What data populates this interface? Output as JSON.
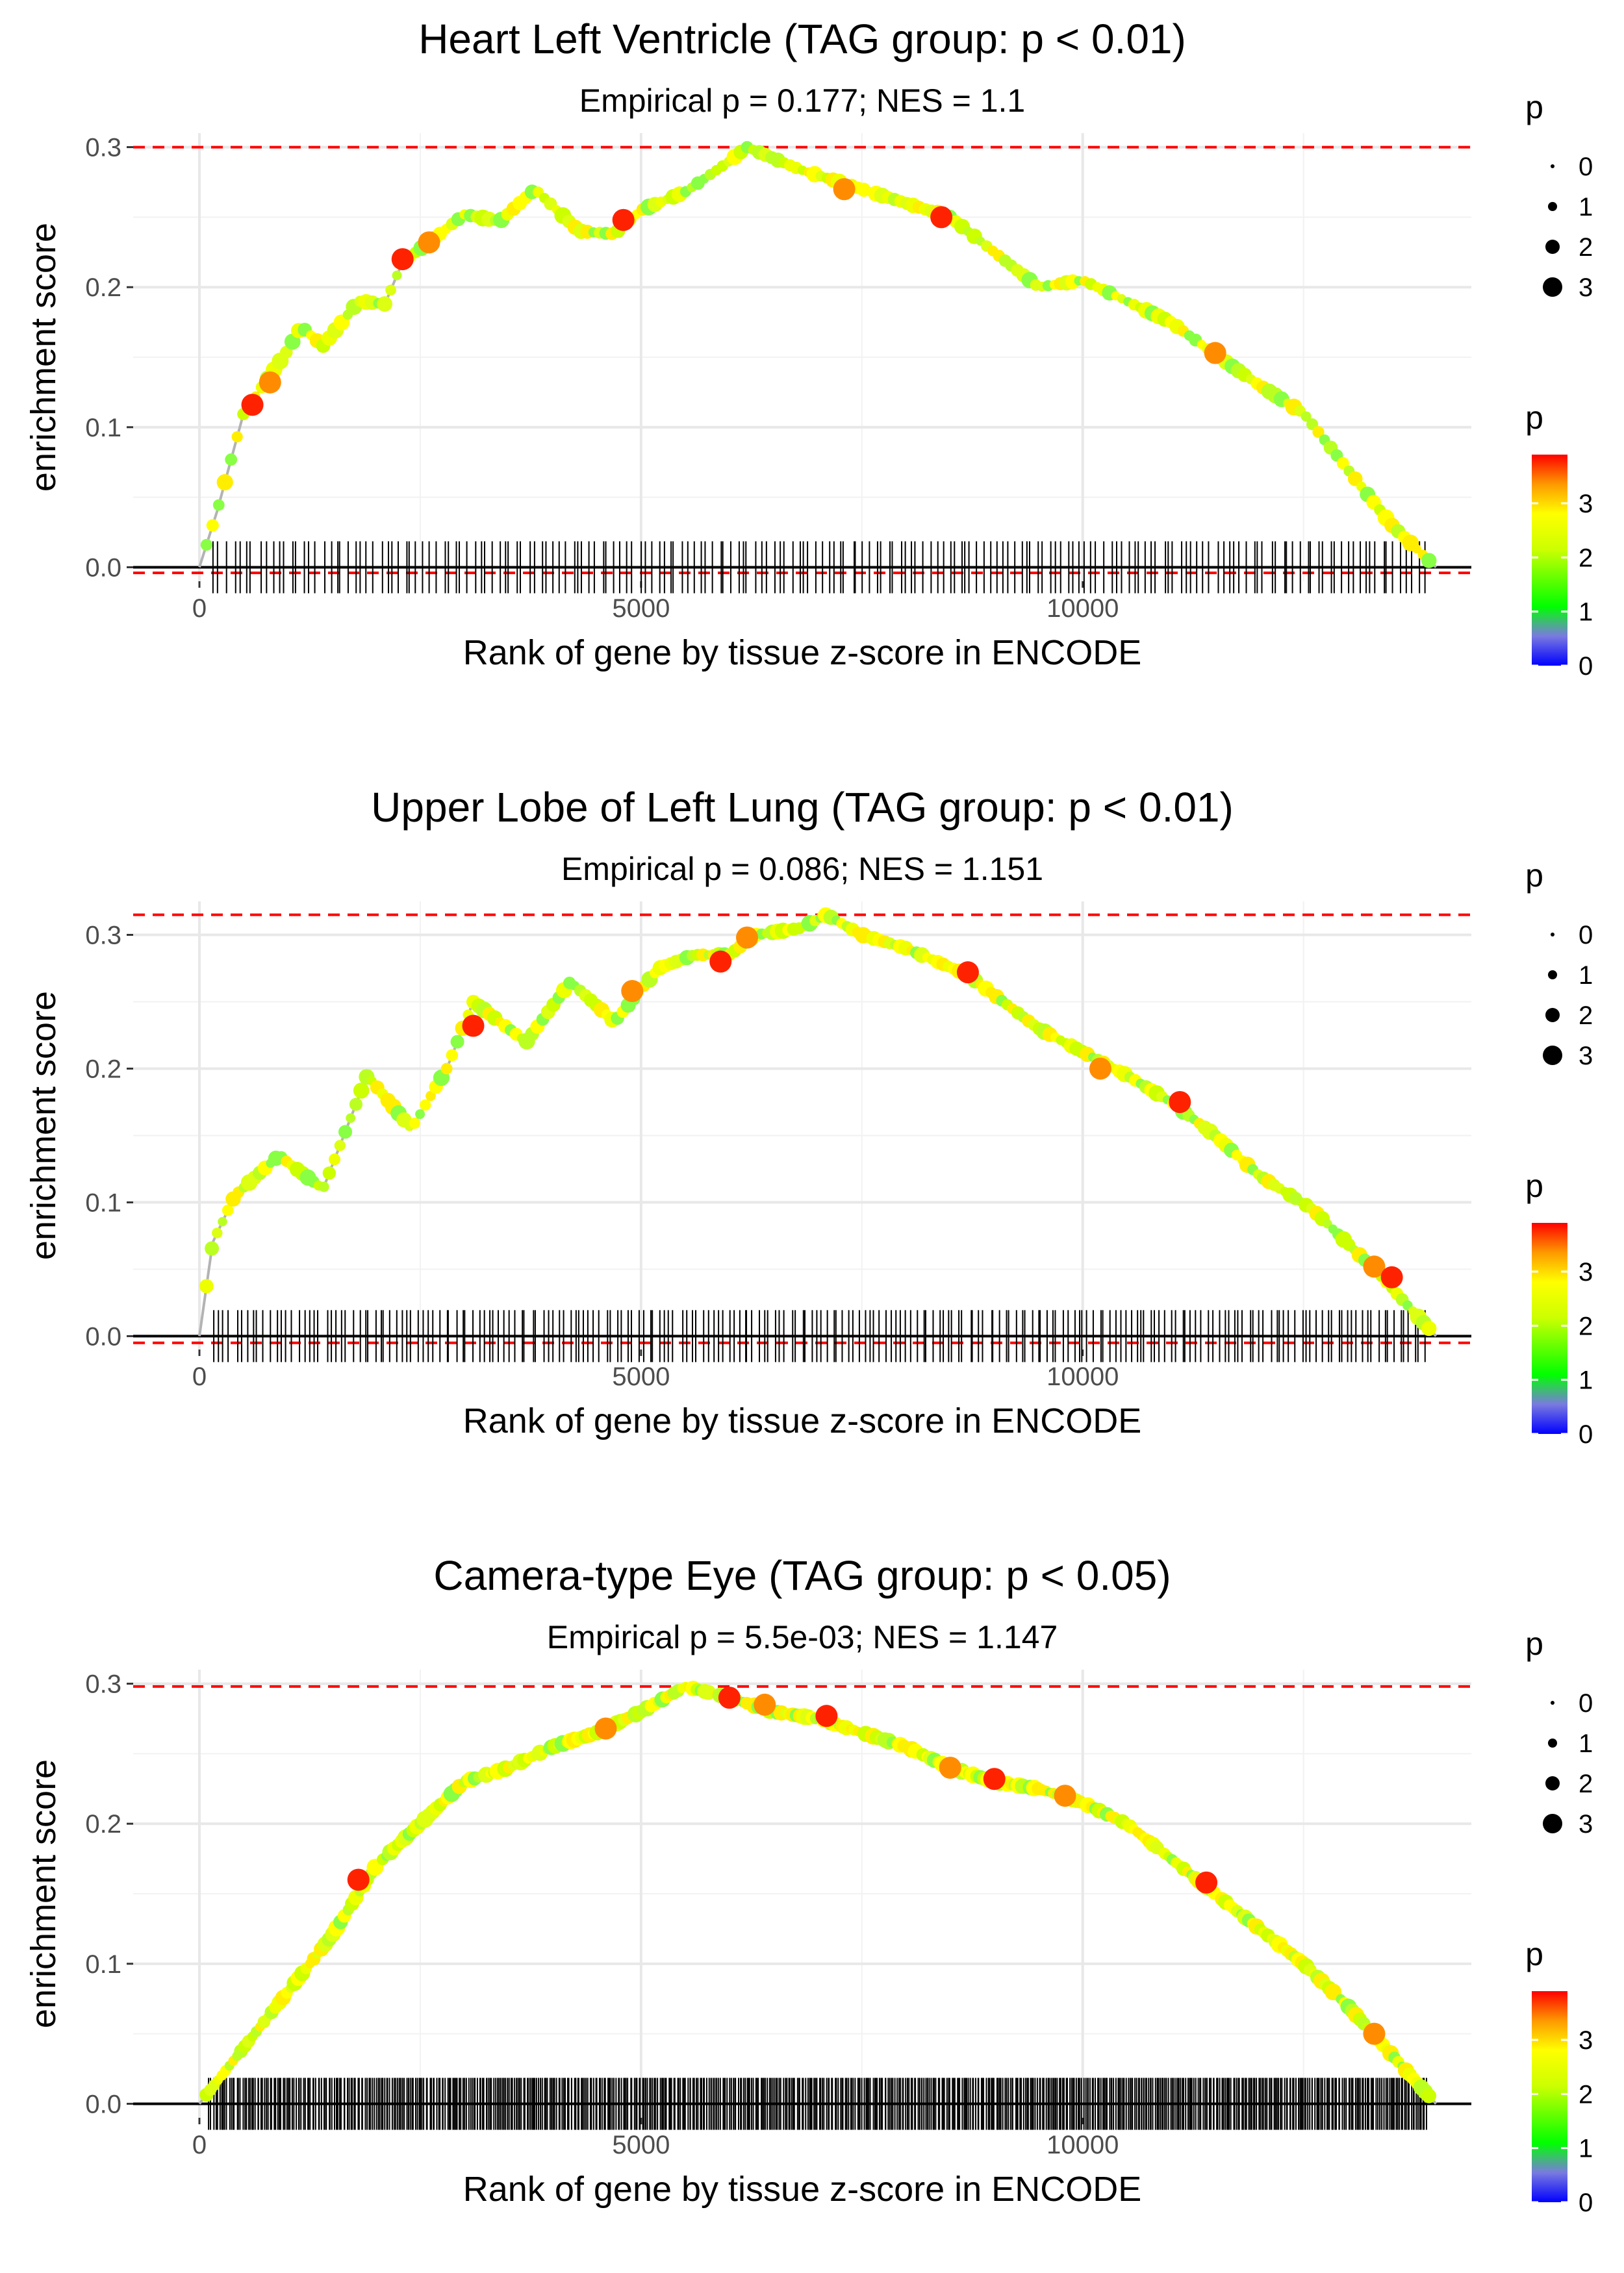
{
  "chart_data": [
    {
      "type": "line",
      "title": "Heart Left Ventricle (TAG group: p < 0.01)",
      "subtitle": "Empirical p = 0.177; NES = 1.1",
      "xlabel": "Rank of gene by tissue z-score in ENCODE",
      "ylabel": "enrichment score",
      "xlim": [
        -750,
        14400
      ],
      "ylim": [
        -0.01,
        0.31
      ],
      "x_ticks": [
        0,
        5000,
        10000
      ],
      "x_tick_labels": [
        "0",
        "5000",
        "10000"
      ],
      "y_ticks": [
        0,
        0.1,
        0.2,
        0.3
      ],
      "y_tick_labels": [
        "0.0",
        "0.1",
        "0.2",
        "0.3"
      ],
      "max_es": 0.3,
      "min_es": -0.004,
      "n_hits": 200,
      "n_genes": 14000,
      "curve": [
        [
          0,
          0
        ],
        [
          200,
          0.04
        ],
        [
          500,
          0.11
        ],
        [
          1000,
          0.155
        ],
        [
          1150,
          0.172
        ],
        [
          1400,
          0.158
        ],
        [
          1800,
          0.19
        ],
        [
          2100,
          0.188
        ],
        [
          2300,
          0.218
        ],
        [
          2600,
          0.232
        ],
        [
          3000,
          0.252
        ],
        [
          3400,
          0.247
        ],
        [
          3800,
          0.27
        ],
        [
          4300,
          0.24
        ],
        [
          4700,
          0.238
        ],
        [
          5000,
          0.255
        ],
        [
          5500,
          0.268
        ],
        [
          6000,
          0.29
        ],
        [
          6200,
          0.3
        ],
        [
          6800,
          0.284
        ],
        [
          7500,
          0.27
        ],
        [
          8500,
          0.25
        ],
        [
          9500,
          0.2
        ],
        [
          10000,
          0.205
        ],
        [
          11000,
          0.175
        ],
        [
          11500,
          0.152
        ],
        [
          12000,
          0.13
        ],
        [
          12500,
          0.11
        ],
        [
          13000,
          0.07
        ],
        [
          13500,
          0.03
        ],
        [
          14000,
          0
        ]
      ],
      "highlight": [
        [
          600,
          0.116
        ],
        [
          800,
          0.132
        ],
        [
          2300,
          0.22
        ],
        [
          2600,
          0.232
        ],
        [
          4800,
          0.248
        ],
        [
          7300,
          0.27
        ],
        [
          8400,
          0.25
        ],
        [
          11500,
          0.153
        ]
      ],
      "size_legend": {
        "title": "p",
        "levels": [
          "0",
          "1",
          "2",
          "3"
        ]
      },
      "color_legend": {
        "title": "p",
        "labels": [
          "0",
          "1",
          "2",
          "3"
        ]
      }
    },
    {
      "type": "line",
      "title": "Upper Lobe of Left Lung (TAG group: p < 0.01)",
      "subtitle": "Empirical p = 0.086; NES = 1.151",
      "xlabel": "Rank of gene by tissue z-score in ENCODE",
      "ylabel": "enrichment score",
      "xlim": [
        -750,
        14400
      ],
      "ylim": [
        -0.01,
        0.325
      ],
      "x_ticks": [
        0,
        5000,
        10000
      ],
      "x_tick_labels": [
        "0",
        "5000",
        "10000"
      ],
      "y_ticks": [
        0,
        0.1,
        0.2,
        0.3
      ],
      "y_tick_labels": [
        "0.0",
        "0.1",
        "0.2",
        "0.3"
      ],
      "max_es": 0.315,
      "min_es": -0.005,
      "n_hits": 230,
      "n_genes": 14000,
      "curve": [
        [
          0,
          0
        ],
        [
          150,
          0.07
        ],
        [
          400,
          0.105
        ],
        [
          900,
          0.135
        ],
        [
          1400,
          0.11
        ],
        [
          1900,
          0.195
        ],
        [
          2400,
          0.155
        ],
        [
          2800,
          0.2
        ],
        [
          3100,
          0.25
        ],
        [
          3700,
          0.22
        ],
        [
          4200,
          0.265
        ],
        [
          4700,
          0.235
        ],
        [
          5200,
          0.275
        ],
        [
          5600,
          0.285
        ],
        [
          6000,
          0.285
        ],
        [
          6300,
          0.3
        ],
        [
          6800,
          0.305
        ],
        [
          7100,
          0.315
        ],
        [
          7500,
          0.3
        ],
        [
          8000,
          0.29
        ],
        [
          8700,
          0.27
        ],
        [
          9500,
          0.23
        ],
        [
          10500,
          0.195
        ],
        [
          11000,
          0.175
        ],
        [
          11500,
          0.15
        ],
        [
          12000,
          0.12
        ],
        [
          12600,
          0.095
        ],
        [
          13300,
          0.05
        ],
        [
          14000,
          0
        ]
      ],
      "highlight": [
        [
          3100,
          0.232
        ],
        [
          4900,
          0.258
        ],
        [
          5900,
          0.28
        ],
        [
          6200,
          0.298
        ],
        [
          8700,
          0.272
        ],
        [
          10200,
          0.2
        ],
        [
          11100,
          0.175
        ],
        [
          13300,
          0.052
        ],
        [
          13500,
          0.044
        ]
      ],
      "size_legend": {
        "title": "p",
        "levels": [
          "0",
          "1",
          "2",
          "3"
        ]
      },
      "color_legend": {
        "title": "p",
        "labels": [
          "0",
          "1",
          "2",
          "3"
        ]
      }
    },
    {
      "type": "line",
      "title": "Camera-type Eye (TAG group: p < 0.05)",
      "subtitle": "Empirical p = 5.5e-03; NES = 1.147",
      "xlabel": "Rank of gene by tissue z-score in ENCODE",
      "ylabel": "enrichment score",
      "xlim": [
        -750,
        14400
      ],
      "ylim": [
        -0.01,
        0.31
      ],
      "x_ticks": [
        0,
        5000,
        10000
      ],
      "x_tick_labels": [
        "0",
        "5000",
        "10000"
      ],
      "y_ticks": [
        0,
        0.1,
        0.2,
        0.3
      ],
      "y_tick_labels": [
        "0.0",
        "0.1",
        "0.2",
        "0.3"
      ],
      "max_es": 0.298,
      "min_es": 0,
      "n_hits": 700,
      "n_genes": 14000,
      "curve": [
        [
          0,
          0
        ],
        [
          500,
          0.04
        ],
        [
          1000,
          0.08
        ],
        [
          1500,
          0.12
        ],
        [
          2000,
          0.17
        ],
        [
          2500,
          0.2
        ],
        [
          3000,
          0.23
        ],
        [
          3500,
          0.24
        ],
        [
          4000,
          0.255
        ],
        [
          4500,
          0.265
        ],
        [
          5000,
          0.28
        ],
        [
          5500,
          0.298
        ],
        [
          6000,
          0.29
        ],
        [
          6500,
          0.28
        ],
        [
          7000,
          0.275
        ],
        [
          7500,
          0.265
        ],
        [
          8000,
          0.255
        ],
        [
          8500,
          0.24
        ],
        [
          9000,
          0.23
        ],
        [
          9500,
          0.225
        ],
        [
          10000,
          0.215
        ],
        [
          10500,
          0.2
        ],
        [
          11000,
          0.175
        ],
        [
          11500,
          0.15
        ],
        [
          12000,
          0.125
        ],
        [
          12500,
          0.1
        ],
        [
          13000,
          0.07
        ],
        [
          13500,
          0.035
        ],
        [
          14000,
          0
        ]
      ],
      "highlight": [
        [
          1800,
          0.16
        ],
        [
          4600,
          0.268
        ],
        [
          6000,
          0.29
        ],
        [
          6400,
          0.285
        ],
        [
          7100,
          0.277
        ],
        [
          8500,
          0.24
        ],
        [
          9000,
          0.232
        ],
        [
          9800,
          0.22
        ],
        [
          11400,
          0.158
        ],
        [
          13300,
          0.05
        ]
      ],
      "size_legend": {
        "title": "p",
        "levels": [
          "0",
          "1",
          "2",
          "3"
        ]
      },
      "color_legend": {
        "title": "p",
        "labels": [
          "0",
          "1",
          "2",
          "3"
        ]
      }
    }
  ]
}
